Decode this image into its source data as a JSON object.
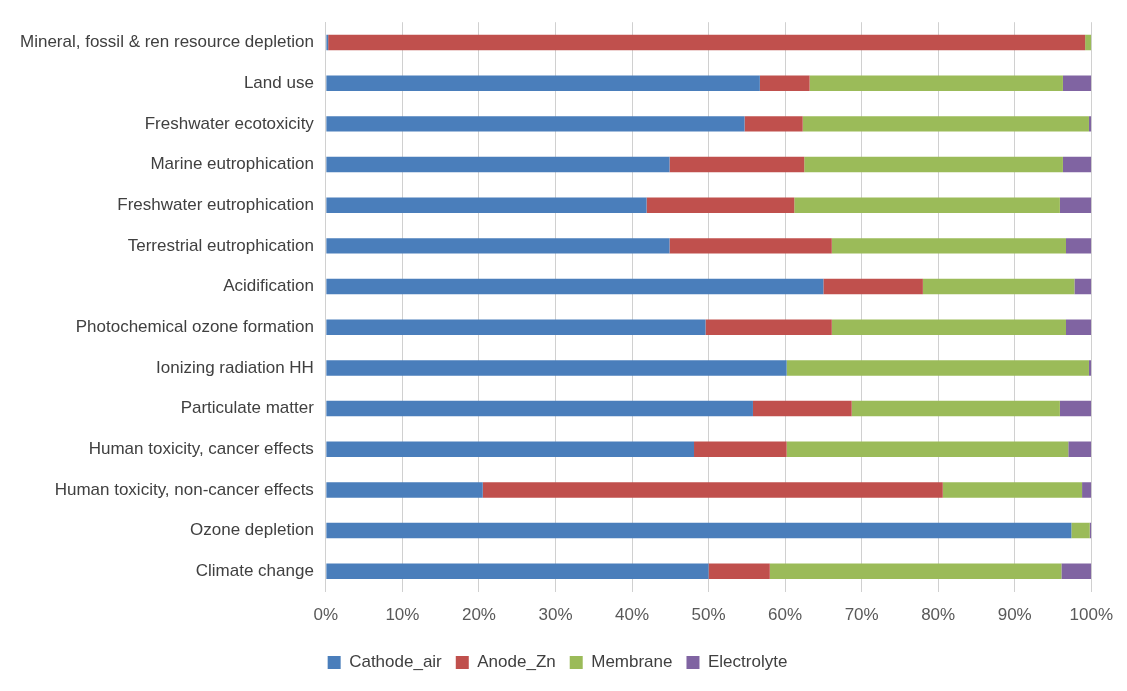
{
  "chart_data": {
    "type": "bar",
    "orientation": "horizontal",
    "stacked": true,
    "grid": "x",
    "legend": "bottom",
    "categories": [
      "Mineral, fossil & ren resource depletion",
      "Land use",
      "Freshwater ecotoxicity",
      "Marine eutrophication",
      "Freshwater eutrophication",
      "Terrestrial eutrophication",
      "Acidification",
      "Photochemical ozone formation",
      "Ionizing radiation HH",
      "Particulate matter",
      "Human toxicity, cancer effects",
      "Human toxicity, non-cancer effects",
      "Ozone depletion",
      "Climate change"
    ],
    "series": [
      {
        "name": "Cathode_air",
        "color": "#4a7ebb",
        "values": [
          0.3,
          56.7,
          54.7,
          44.9,
          41.9,
          44.9,
          65.0,
          49.6,
          60.2,
          55.8,
          48.1,
          20.5,
          97.4,
          50.0
        ]
      },
      {
        "name": "Anode_Zn",
        "color": "#c0504d",
        "values": [
          98.9,
          6.5,
          7.6,
          17.6,
          19.3,
          21.2,
          13.0,
          16.5,
          0,
          12.9,
          12.1,
          60.1,
          0,
          8.0
        ]
      },
      {
        "name": "Membrane",
        "color": "#9bbb59",
        "values": [
          0.8,
          33.1,
          37.4,
          33.8,
          34.7,
          30.6,
          19.8,
          30.6,
          39.5,
          27.2,
          36.8,
          18.2,
          2.4,
          38.1
        ]
      },
      {
        "name": "Electrolyte",
        "color": "#8064a2",
        "values": [
          0,
          3.7,
          0.3,
          3.7,
          4.1,
          3.3,
          2.2,
          3.3,
          0.3,
          4.1,
          3.0,
          1.2,
          0.2,
          3.9
        ]
      }
    ],
    "xlim": [
      0,
      100
    ],
    "xticks": [
      {
        "value": 0,
        "label": "0%"
      },
      {
        "value": 10,
        "label": "10%"
      },
      {
        "value": 20,
        "label": "20%"
      },
      {
        "value": 30,
        "label": "30%"
      },
      {
        "value": 40,
        "label": "40%"
      },
      {
        "value": 50,
        "label": "50%"
      },
      {
        "value": 60,
        "label": "60%"
      },
      {
        "value": 70,
        "label": "70%"
      },
      {
        "value": 80,
        "label": "80%"
      },
      {
        "value": 90,
        "label": "90%"
      },
      {
        "value": 100,
        "label": "100%"
      }
    ]
  }
}
